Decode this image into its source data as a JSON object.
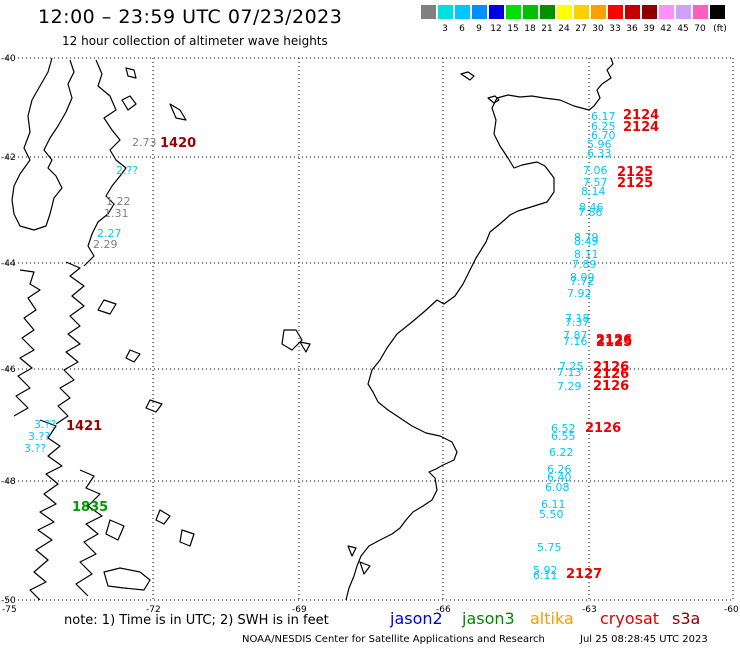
{
  "header": {
    "title": "12:00 – 23:59 UTC 07/23/2023",
    "subtitle": "12 hour collection of altimeter wave heights"
  },
  "scale": {
    "unit": "(ft)",
    "bins": [
      {
        "label": "",
        "color": "#808080"
      },
      {
        "label": "3",
        "color": "#00e0e0"
      },
      {
        "label": "6",
        "color": "#00c8ff"
      },
      {
        "label": "9",
        "color": "#0090ff"
      },
      {
        "label": "12",
        "color": "#0000e0"
      },
      {
        "label": "15",
        "color": "#00e000"
      },
      {
        "label": "18",
        "color": "#00c000"
      },
      {
        "label": "21",
        "color": "#009000"
      },
      {
        "label": "24",
        "color": "#ffff00"
      },
      {
        "label": "27",
        "color": "#ffd000"
      },
      {
        "label": "30",
        "color": "#ffa000"
      },
      {
        "label": "33",
        "color": "#ff0000"
      },
      {
        "label": "36",
        "color": "#c00000"
      },
      {
        "label": "39",
        "color": "#900000"
      },
      {
        "label": "42",
        "color": "#ff90ff"
      },
      {
        "label": "45",
        "color": "#d0a0ff"
      },
      {
        "label": "70",
        "color": "#ff60c0"
      },
      {
        "label": "",
        "color": "#000000"
      }
    ]
  },
  "axes": {
    "lat_labels": [
      "-40",
      "-42",
      "-44",
      "-46",
      "-48",
      "-50"
    ],
    "lon_labels": [
      "-75",
      "-72",
      "-69",
      "-66",
      "-63",
      "-60"
    ]
  },
  "observations": [
    {
      "v": "2.73",
      "c": "#808080"
    },
    {
      "v": "2.??",
      "c": "#00c8ff"
    },
    {
      "v": "1.22",
      "c": "#808080"
    },
    {
      "v": "1.31",
      "c": "#808080"
    },
    {
      "v": "2.27",
      "c": "#00c8ff"
    },
    {
      "v": "2.29",
      "c": "#808080"
    },
    {
      "v": "3.??",
      "c": "#00c8ff"
    },
    {
      "v": "3.??",
      "c": "#00c8ff"
    },
    {
      "v": "3.??",
      "c": "#00c8ff"
    },
    {
      "v": "6.17",
      "c": "#00c8ff"
    },
    {
      "v": "6.25",
      "c": "#00c8ff"
    },
    {
      "v": "6.70",
      "c": "#00c8ff"
    },
    {
      "v": "5.96",
      "c": "#00c8ff"
    },
    {
      "v": "6.33",
      "c": "#00c8ff"
    },
    {
      "v": "7.06",
      "c": "#00c8ff"
    },
    {
      "v": "7.57",
      "c": "#00c8ff"
    },
    {
      "v": "8.14",
      "c": "#00c8ff"
    },
    {
      "v": "8.46",
      "c": "#00c8ff"
    },
    {
      "v": "7.86",
      "c": "#00c8ff"
    },
    {
      "v": "8.79",
      "c": "#00c8ff"
    },
    {
      "v": "8.49",
      "c": "#00c8ff"
    },
    {
      "v": "8.11",
      "c": "#00c8ff"
    },
    {
      "v": "7.89",
      "c": "#00c8ff"
    },
    {
      "v": "8.09",
      "c": "#00c8ff"
    },
    {
      "v": "7.72",
      "c": "#00c8ff"
    },
    {
      "v": "7.92",
      "c": "#00c8ff"
    },
    {
      "v": "7.18",
      "c": "#00c8ff"
    },
    {
      "v": "7.37",
      "c": "#00c8ff"
    },
    {
      "v": "7.87",
      "c": "#00c8ff"
    },
    {
      "v": "7.16",
      "c": "#00c8ff"
    },
    {
      "v": "7.25",
      "c": "#00c8ff"
    },
    {
      "v": "7.13",
      "c": "#00c8ff"
    },
    {
      "v": "7.29",
      "c": "#00c8ff"
    },
    {
      "v": "6.52",
      "c": "#00c8ff"
    },
    {
      "v": "6.55",
      "c": "#00c8ff"
    },
    {
      "v": "6.22",
      "c": "#00c8ff"
    },
    {
      "v": "6.26",
      "c": "#00c8ff"
    },
    {
      "v": "6.40",
      "c": "#00c8ff"
    },
    {
      "v": "6.08",
      "c": "#00c8ff"
    },
    {
      "v": "6.11",
      "c": "#00c8ff"
    },
    {
      "v": "5.50",
      "c": "#00c8ff"
    },
    {
      "v": "5.75",
      "c": "#00c8ff"
    },
    {
      "v": "5.92",
      "c": "#00c8ff"
    },
    {
      "v": "6.11",
      "c": "#00c8ff"
    }
  ],
  "track_times": [
    {
      "t": "1420",
      "c": "#990000"
    },
    {
      "t": "1421",
      "c": "#990000"
    },
    {
      "t": "1835",
      "c": "#009900"
    },
    {
      "t": "2124",
      "c": "#ee0000"
    },
    {
      "t": "2124",
      "c": "#ee0000"
    },
    {
      "t": "2125",
      "c": "#ee0000"
    },
    {
      "t": "2125",
      "c": "#ee0000"
    },
    {
      "t": "2126",
      "c": "#ee0000"
    },
    {
      "t": "2125",
      "c": "#ee0000"
    },
    {
      "t": "2126",
      "c": "#ee0000"
    },
    {
      "t": "2126",
      "c": "#ee0000"
    },
    {
      "t": "2126",
      "c": "#ee0000"
    },
    {
      "t": "2126",
      "c": "#ee0000"
    },
    {
      "t": "2127",
      "c": "#ee0000"
    }
  ],
  "footer": {
    "note": "note:  1) Time is in UTC;  2) SWH is in feet",
    "legend": [
      {
        "name": "jason2",
        "color": "#0000dd"
      },
      {
        "name": "jason3",
        "color": "#008800"
      },
      {
        "name": "altika",
        "color": "#ff9900"
      },
      {
        "name": "cryosat",
        "color": "#dd0000"
      },
      {
        "name": "s3a",
        "color": "#880000"
      }
    ],
    "credit": "NOAA/NESDIS Center for Satellite Applications and Research",
    "timestamp": "Jul 25 08:28:45 UTC 2023"
  }
}
